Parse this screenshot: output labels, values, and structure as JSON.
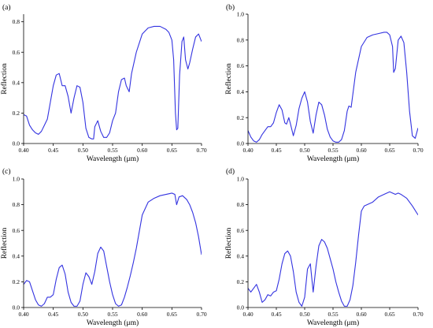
{
  "colors": {
    "line": "#3333e0",
    "axis": "#000000",
    "background": "#ffffff"
  },
  "chart_data": [
    {
      "type": "line",
      "panel_label": "(a)",
      "xlabel": "Wavelength (μm)",
      "ylabel": "Reflection",
      "xlim": [
        0.4,
        0.7
      ],
      "ylim": [
        0,
        0.85
      ],
      "xticks": [
        "0.40",
        "0.45",
        "0.50",
        "0.55",
        "0.60",
        "0.65",
        "0.70"
      ],
      "yticks": [
        "0.0",
        "0.2",
        "0.4",
        "0.6",
        "0.8"
      ],
      "grid": false,
      "series": [
        {
          "x": [
            0.4,
            0.405,
            0.41,
            0.415,
            0.42,
            0.425,
            0.43,
            0.435,
            0.44,
            0.445,
            0.45,
            0.455,
            0.46,
            0.465,
            0.47,
            0.475,
            0.48,
            0.485,
            0.49,
            0.495,
            0.5,
            0.505,
            0.51,
            0.515,
            0.518,
            0.52,
            0.525,
            0.53,
            0.535,
            0.54,
            0.545,
            0.55,
            0.555,
            0.56,
            0.565,
            0.57,
            0.573,
            0.578,
            0.582,
            0.59,
            0.6,
            0.61,
            0.62,
            0.63,
            0.64,
            0.645,
            0.65,
            0.653,
            0.656,
            0.658,
            0.66,
            0.663,
            0.667,
            0.67,
            0.673,
            0.677,
            0.68,
            0.685,
            0.69,
            0.695,
            0.7
          ],
          "y": [
            0.19,
            0.18,
            0.12,
            0.09,
            0.07,
            0.06,
            0.08,
            0.12,
            0.16,
            0.27,
            0.38,
            0.45,
            0.46,
            0.38,
            0.38,
            0.31,
            0.2,
            0.3,
            0.38,
            0.37,
            0.27,
            0.1,
            0.04,
            0.03,
            0.03,
            0.11,
            0.15,
            0.08,
            0.04,
            0.04,
            0.07,
            0.15,
            0.2,
            0.34,
            0.42,
            0.43,
            0.38,
            0.34,
            0.46,
            0.6,
            0.72,
            0.76,
            0.77,
            0.77,
            0.75,
            0.73,
            0.68,
            0.55,
            0.2,
            0.09,
            0.1,
            0.45,
            0.67,
            0.7,
            0.55,
            0.49,
            0.53,
            0.62,
            0.7,
            0.72,
            0.67
          ]
        }
      ]
    },
    {
      "type": "line",
      "panel_label": "(b)",
      "xlabel": "Wavelength (μm)",
      "ylabel": "Reflection",
      "xlim": [
        0.4,
        0.7
      ],
      "ylim": [
        0,
        1.0
      ],
      "xticks": [
        "0.40",
        "0.45",
        "0.50",
        "0.55",
        "0.60",
        "0.65",
        "0.70"
      ],
      "yticks": [
        "0.0",
        "0.2",
        "0.4",
        "0.6",
        "0.8",
        "1.0"
      ],
      "grid": false,
      "series": [
        {
          "x": [
            0.4,
            0.405,
            0.41,
            0.415,
            0.42,
            0.425,
            0.43,
            0.435,
            0.44,
            0.445,
            0.45,
            0.455,
            0.46,
            0.465,
            0.468,
            0.472,
            0.475,
            0.48,
            0.485,
            0.49,
            0.495,
            0.5,
            0.505,
            0.51,
            0.515,
            0.52,
            0.525,
            0.53,
            0.535,
            0.54,
            0.545,
            0.55,
            0.555,
            0.56,
            0.565,
            0.57,
            0.575,
            0.578,
            0.582,
            0.59,
            0.6,
            0.61,
            0.62,
            0.63,
            0.64,
            0.645,
            0.65,
            0.655,
            0.657,
            0.66,
            0.665,
            0.67,
            0.675,
            0.68,
            0.685,
            0.69,
            0.695,
            0.7
          ],
          "y": [
            0.1,
            0.05,
            0.02,
            0.01,
            0.03,
            0.07,
            0.1,
            0.13,
            0.13,
            0.16,
            0.24,
            0.3,
            0.26,
            0.16,
            0.15,
            0.2,
            0.15,
            0.06,
            0.14,
            0.27,
            0.35,
            0.4,
            0.32,
            0.17,
            0.08,
            0.22,
            0.32,
            0.3,
            0.22,
            0.11,
            0.05,
            0.02,
            0.01,
            0.01,
            0.03,
            0.1,
            0.25,
            0.29,
            0.28,
            0.55,
            0.75,
            0.82,
            0.84,
            0.85,
            0.86,
            0.86,
            0.84,
            0.75,
            0.55,
            0.58,
            0.8,
            0.83,
            0.78,
            0.55,
            0.25,
            0.06,
            0.04,
            0.12
          ]
        }
      ]
    },
    {
      "type": "line",
      "panel_label": "(c)",
      "xlabel": "Wavelength (μm)",
      "ylabel": "Reflection",
      "xlim": [
        0.4,
        0.7
      ],
      "ylim": [
        0,
        1.0
      ],
      "xticks": [
        "0.40",
        "0.45",
        "0.50",
        "0.55",
        "0.60",
        "0.65",
        "0.70"
      ],
      "yticks": [
        "0.0",
        "0.2",
        "0.4",
        "0.6",
        "0.8",
        "1.0"
      ],
      "grid": false,
      "series": [
        {
          "x": [
            0.4,
            0.405,
            0.41,
            0.415,
            0.42,
            0.425,
            0.43,
            0.435,
            0.44,
            0.445,
            0.45,
            0.455,
            0.46,
            0.465,
            0.47,
            0.475,
            0.48,
            0.485,
            0.49,
            0.495,
            0.5,
            0.505,
            0.51,
            0.515,
            0.52,
            0.525,
            0.53,
            0.535,
            0.54,
            0.545,
            0.55,
            0.555,
            0.56,
            0.565,
            0.57,
            0.575,
            0.58,
            0.585,
            0.59,
            0.6,
            0.61,
            0.62,
            0.63,
            0.64,
            0.65,
            0.655,
            0.658,
            0.662,
            0.668,
            0.675,
            0.68,
            0.685,
            0.69,
            0.695,
            0.7
          ],
          "y": [
            0.18,
            0.21,
            0.2,
            0.13,
            0.06,
            0.02,
            0.01,
            0.03,
            0.08,
            0.08,
            0.1,
            0.22,
            0.31,
            0.33,
            0.26,
            0.12,
            0.04,
            0.01,
            0.01,
            0.05,
            0.18,
            0.27,
            0.24,
            0.18,
            0.28,
            0.42,
            0.47,
            0.44,
            0.32,
            0.2,
            0.1,
            0.03,
            0.01,
            0.02,
            0.08,
            0.16,
            0.25,
            0.35,
            0.46,
            0.72,
            0.82,
            0.85,
            0.87,
            0.88,
            0.89,
            0.88,
            0.8,
            0.86,
            0.87,
            0.84,
            0.8,
            0.74,
            0.66,
            0.55,
            0.41
          ]
        }
      ]
    },
    {
      "type": "line",
      "panel_label": "(d)",
      "xlabel": "Wavelength (μm)",
      "ylabel": "Reflection",
      "xlim": [
        0.4,
        0.7
      ],
      "ylim": [
        0,
        1.0
      ],
      "xticks": [
        "0.40",
        "0.45",
        "0.50",
        "0.55",
        "0.60",
        "0.65",
        "0.70"
      ],
      "yticks": [
        "0.0",
        "0.2",
        "0.4",
        "0.6",
        "0.8",
        "1.0"
      ],
      "grid": false,
      "series": [
        {
          "x": [
            0.4,
            0.405,
            0.41,
            0.415,
            0.42,
            0.425,
            0.43,
            0.435,
            0.44,
            0.445,
            0.45,
            0.455,
            0.46,
            0.465,
            0.47,
            0.475,
            0.48,
            0.485,
            0.49,
            0.495,
            0.5,
            0.505,
            0.51,
            0.515,
            0.52,
            0.525,
            0.53,
            0.535,
            0.54,
            0.545,
            0.55,
            0.555,
            0.56,
            0.565,
            0.57,
            0.575,
            0.58,
            0.585,
            0.59,
            0.595,
            0.6,
            0.605,
            0.61,
            0.62,
            0.63,
            0.64,
            0.65,
            0.655,
            0.66,
            0.665,
            0.67,
            0.68,
            0.69,
            0.7
          ],
          "y": [
            0.15,
            0.12,
            0.15,
            0.18,
            0.12,
            0.04,
            0.06,
            0.1,
            0.09,
            0.12,
            0.13,
            0.22,
            0.34,
            0.42,
            0.44,
            0.4,
            0.28,
            0.12,
            0.04,
            0.01,
            0.08,
            0.3,
            0.34,
            0.12,
            0.32,
            0.48,
            0.53,
            0.51,
            0.46,
            0.38,
            0.3,
            0.2,
            0.12,
            0.05,
            0.01,
            0.01,
            0.06,
            0.17,
            0.35,
            0.56,
            0.75,
            0.79,
            0.8,
            0.82,
            0.86,
            0.88,
            0.9,
            0.89,
            0.88,
            0.89,
            0.88,
            0.85,
            0.79,
            0.72
          ]
        }
      ]
    }
  ]
}
